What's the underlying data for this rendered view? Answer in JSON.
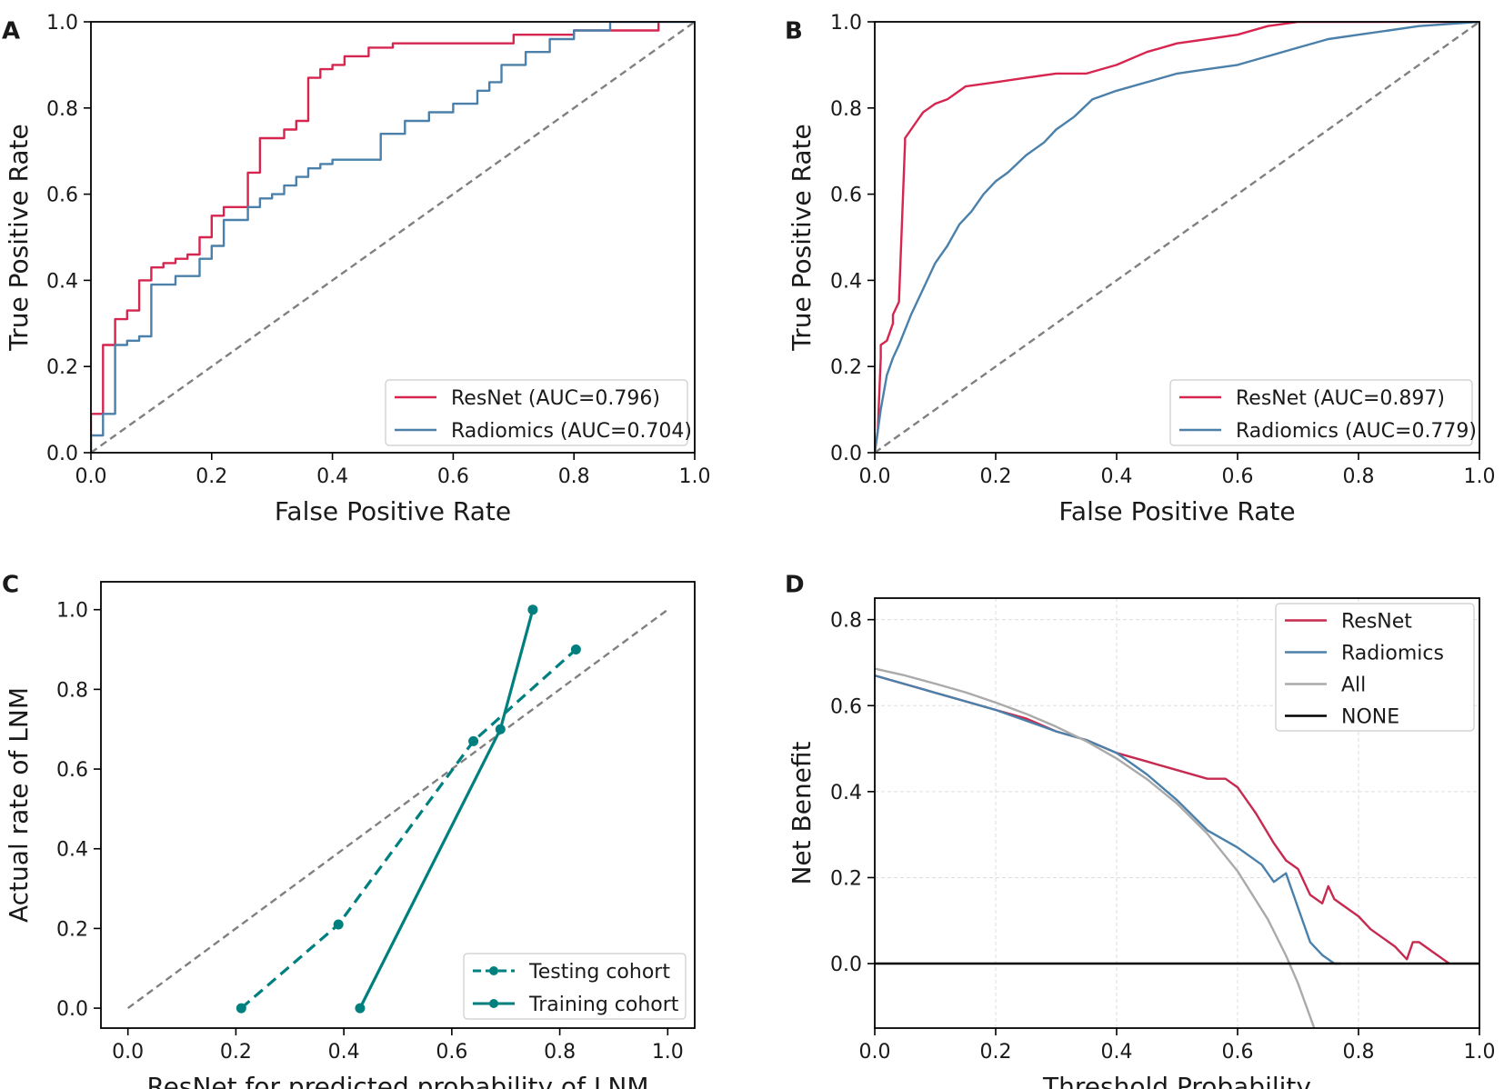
{
  "chart_data": [
    {
      "panel": "A",
      "type": "line",
      "xlabel": "False Positive Rate",
      "ylabel": "True Positive Rate",
      "xlim": [
        0,
        1
      ],
      "ylim": [
        0,
        1
      ],
      "xticks": [
        "0.0",
        "0.2",
        "0.4",
        "0.6",
        "0.8",
        "1.0"
      ],
      "yticks": [
        "0.0",
        "0.2",
        "0.4",
        "0.6",
        "0.8",
        "1.0"
      ],
      "xtick_values": [
        0,
        0.2,
        0.4,
        0.6,
        0.8,
        1.0
      ],
      "ytick_values": [
        0,
        0.2,
        0.4,
        0.6,
        0.8,
        1.0
      ],
      "legend_position": "lower-right",
      "reference_line": {
        "x": [
          0,
          1
        ],
        "y": [
          0,
          1
        ],
        "color": "#808080",
        "dash": true
      },
      "series": [
        {
          "name": "ResNet (AUC=0.796)",
          "color": "#d6254f",
          "step": true,
          "x": [
            0,
            0,
            0.02,
            0.02,
            0.04,
            0.04,
            0.06,
            0.06,
            0.08,
            0.08,
            0.1,
            0.1,
            0.12,
            0.12,
            0.14,
            0.14,
            0.16,
            0.16,
            0.18,
            0.18,
            0.2,
            0.2,
            0.22,
            0.22,
            0.26,
            0.26,
            0.28,
            0.28,
            0.32,
            0.32,
            0.34,
            0.34,
            0.36,
            0.36,
            0.38,
            0.38,
            0.4,
            0.4,
            0.42,
            0.42,
            0.46,
            0.46,
            0.5,
            0.5,
            0.7,
            0.7,
            0.8,
            0.8,
            0.94,
            0.94
          ],
          "y": [
            0,
            0.09,
            0.09,
            0.25,
            0.25,
            0.31,
            0.31,
            0.33,
            0.33,
            0.4,
            0.4,
            0.43,
            0.43,
            0.44,
            0.44,
            0.45,
            0.45,
            0.46,
            0.46,
            0.5,
            0.5,
            0.55,
            0.55,
            0.57,
            0.57,
            0.65,
            0.65,
            0.73,
            0.73,
            0.75,
            0.75,
            0.77,
            0.77,
            0.87,
            0.87,
            0.89,
            0.89,
            0.9,
            0.9,
            0.92,
            0.92,
            0.94,
            0.94,
            0.95,
            0.95,
            0.97,
            0.97,
            0.98,
            0.98,
            1.0
          ]
        },
        {
          "name": "Radiomics (AUC=0.704)",
          "color": "#4a80aa",
          "step": true,
          "x": [
            0,
            0,
            0.02,
            0.02,
            0.04,
            0.04,
            0.06,
            0.06,
            0.08,
            0.08,
            0.1,
            0.1,
            0.14,
            0.14,
            0.18,
            0.18,
            0.2,
            0.2,
            0.22,
            0.22,
            0.26,
            0.26,
            0.28,
            0.28,
            0.3,
            0.3,
            0.32,
            0.32,
            0.34,
            0.34,
            0.36,
            0.36,
            0.38,
            0.38,
            0.4,
            0.4,
            0.48,
            0.48,
            0.52,
            0.52,
            0.56,
            0.56,
            0.6,
            0.6,
            0.64,
            0.64,
            0.66,
            0.66,
            0.68,
            0.68,
            0.72,
            0.72,
            0.76,
            0.76,
            0.8,
            0.8,
            0.86,
            0.86,
            1.0
          ],
          "y": [
            0,
            0.04,
            0.04,
            0.09,
            0.09,
            0.25,
            0.25,
            0.26,
            0.26,
            0.27,
            0.27,
            0.39,
            0.39,
            0.41,
            0.41,
            0.45,
            0.45,
            0.48,
            0.48,
            0.54,
            0.54,
            0.57,
            0.57,
            0.59,
            0.59,
            0.6,
            0.6,
            0.62,
            0.62,
            0.64,
            0.64,
            0.66,
            0.66,
            0.67,
            0.67,
            0.68,
            0.68,
            0.74,
            0.74,
            0.77,
            0.77,
            0.79,
            0.79,
            0.81,
            0.81,
            0.84,
            0.84,
            0.86,
            0.86,
            0.9,
            0.9,
            0.93,
            0.93,
            0.96,
            0.96,
            0.98,
            0.98,
            1.0,
            1.0
          ]
        }
      ]
    },
    {
      "panel": "B",
      "type": "line",
      "xlabel": "False Positive Rate",
      "ylabel": "True Positive Rate",
      "xlim": [
        0,
        1
      ],
      "ylim": [
        0,
        1
      ],
      "xticks": [
        "0.0",
        "0.2",
        "0.4",
        "0.6",
        "0.8",
        "1.0"
      ],
      "yticks": [
        "0.0",
        "0.2",
        "0.4",
        "0.6",
        "0.8",
        "1.0"
      ],
      "xtick_values": [
        0,
        0.2,
        0.4,
        0.6,
        0.8,
        1.0
      ],
      "ytick_values": [
        0,
        0.2,
        0.4,
        0.6,
        0.8,
        1.0
      ],
      "legend_position": "lower-right",
      "reference_line": {
        "x": [
          0,
          1
        ],
        "y": [
          0,
          1
        ],
        "color": "#808080",
        "dash": true
      },
      "series": [
        {
          "name": "ResNet (AUC=0.897)",
          "color": "#d6254f",
          "x": [
            0,
            0.005,
            0.01,
            0.01,
            0.02,
            0.03,
            0.03,
            0.04,
            0.05,
            0.05,
            0.06,
            0.07,
            0.08,
            0.09,
            0.1,
            0.12,
            0.15,
            0.2,
            0.25,
            0.3,
            0.35,
            0.4,
            0.45,
            0.5,
            0.55,
            0.6,
            0.65,
            0.7,
            0.8,
            0.9,
            1.0
          ],
          "y": [
            0,
            0.05,
            0.22,
            0.25,
            0.26,
            0.3,
            0.32,
            0.35,
            0.72,
            0.73,
            0.75,
            0.77,
            0.79,
            0.8,
            0.81,
            0.82,
            0.85,
            0.86,
            0.87,
            0.88,
            0.88,
            0.9,
            0.93,
            0.95,
            0.96,
            0.97,
            0.99,
            1.0,
            1.0,
            1.0,
            1.0
          ]
        },
        {
          "name": "Radiomics (AUC=0.779)",
          "color": "#4a80aa",
          "x": [
            0,
            0.01,
            0.02,
            0.03,
            0.04,
            0.06,
            0.08,
            0.1,
            0.12,
            0.14,
            0.16,
            0.18,
            0.2,
            0.22,
            0.25,
            0.28,
            0.3,
            0.33,
            0.36,
            0.4,
            0.45,
            0.5,
            0.55,
            0.6,
            0.65,
            0.7,
            0.75,
            0.8,
            0.85,
            0.9,
            1.0
          ],
          "y": [
            0,
            0.1,
            0.18,
            0.22,
            0.25,
            0.32,
            0.38,
            0.44,
            0.48,
            0.53,
            0.56,
            0.6,
            0.63,
            0.65,
            0.69,
            0.72,
            0.75,
            0.78,
            0.82,
            0.84,
            0.86,
            0.88,
            0.89,
            0.9,
            0.92,
            0.94,
            0.96,
            0.97,
            0.98,
            0.99,
            1.0
          ]
        }
      ]
    },
    {
      "panel": "C",
      "type": "line",
      "xlabel": "ResNet for predicted probability of LNM",
      "ylabel": "Actual rate of LNM",
      "xlim": [
        -0.05,
        1.05
      ],
      "ylim": [
        -0.05,
        1.07
      ],
      "xticks": [
        "0.0",
        "0.2",
        "0.4",
        "0.6",
        "0.8",
        "1.0"
      ],
      "yticks": [
        "0.0",
        "0.2",
        "0.4",
        "0.6",
        "0.8",
        "1.0"
      ],
      "xtick_values": [
        0,
        0.2,
        0.4,
        0.6,
        0.8,
        1.0
      ],
      "ytick_values": [
        0,
        0.2,
        0.4,
        0.6,
        0.8,
        1.0
      ],
      "legend_position": "lower-right",
      "reference_line": {
        "x": [
          0,
          1
        ],
        "y": [
          0,
          1
        ],
        "color": "#808080",
        "dash": true
      },
      "series": [
        {
          "name": "Testing cohort",
          "color": "#007f7f",
          "dash": true,
          "markers": true,
          "x": [
            0.21,
            0.39,
            0.64,
            0.83
          ],
          "y": [
            0.0,
            0.21,
            0.67,
            0.9
          ]
        },
        {
          "name": "Training cohort",
          "color": "#007f7f",
          "dash": false,
          "markers": true,
          "x": [
            0.43,
            0.69,
            0.75
          ],
          "y": [
            0.0,
            0.7,
            1.0
          ]
        }
      ]
    },
    {
      "panel": "D",
      "type": "line",
      "xlabel": "Threshold Probability",
      "ylabel": "Net Benefit",
      "xlim": [
        0,
        1
      ],
      "ylim": [
        -0.15,
        0.85
      ],
      "xticks": [
        "0.0",
        "0.2",
        "0.4",
        "0.6",
        "0.8",
        "1.0"
      ],
      "yticks": [
        "0.0",
        "0.2",
        "0.4",
        "0.6",
        "0.8"
      ],
      "xtick_values": [
        0,
        0.2,
        0.4,
        0.6,
        0.8,
        1.0
      ],
      "ytick_values": [
        0,
        0.2,
        0.4,
        0.6,
        0.8
      ],
      "grid": true,
      "legend_position": "top-right",
      "series": [
        {
          "name": "ResNet",
          "color": "#c62a4f",
          "x": [
            0,
            0.05,
            0.1,
            0.15,
            0.2,
            0.25,
            0.3,
            0.35,
            0.4,
            0.45,
            0.5,
            0.55,
            0.58,
            0.6,
            0.63,
            0.66,
            0.68,
            0.7,
            0.72,
            0.74,
            0.75,
            0.76,
            0.78,
            0.8,
            0.82,
            0.84,
            0.86,
            0.88,
            0.89,
            0.9,
            0.92,
            0.93,
            0.94,
            0.95
          ],
          "y": [
            0.67,
            0.65,
            0.63,
            0.61,
            0.59,
            0.57,
            0.54,
            0.52,
            0.49,
            0.47,
            0.45,
            0.43,
            0.43,
            0.41,
            0.35,
            0.28,
            0.24,
            0.22,
            0.16,
            0.14,
            0.18,
            0.15,
            0.13,
            0.11,
            0.08,
            0.06,
            0.04,
            0.01,
            0.05,
            0.05,
            0.03,
            0.02,
            0.01,
            0.0
          ]
        },
        {
          "name": "Radiomics",
          "color": "#4a80aa",
          "x": [
            0,
            0.1,
            0.2,
            0.3,
            0.35,
            0.4,
            0.45,
            0.5,
            0.55,
            0.6,
            0.62,
            0.64,
            0.66,
            0.68,
            0.7,
            0.72,
            0.74,
            0.76,
            0.77
          ],
          "y": [
            0.67,
            0.63,
            0.59,
            0.54,
            0.52,
            0.49,
            0.44,
            0.38,
            0.31,
            0.27,
            0.25,
            0.23,
            0.19,
            0.21,
            0.13,
            0.05,
            0.02,
            0.0,
            0.0
          ]
        },
        {
          "name": "All",
          "color": "#aaaaaa",
          "x": [
            0,
            0.05,
            0.1,
            0.15,
            0.2,
            0.25,
            0.3,
            0.35,
            0.4,
            0.45,
            0.5,
            0.55,
            0.6,
            0.65,
            0.68,
            0.7,
            0.73
          ],
          "y": [
            0.686,
            0.67,
            0.651,
            0.631,
            0.607,
            0.581,
            0.551,
            0.517,
            0.477,
            0.429,
            0.372,
            0.302,
            0.215,
            0.103,
            0.019,
            -0.046,
            -0.163
          ]
        },
        {
          "name": "NONE",
          "color": "#000000",
          "x": [
            0,
            1
          ],
          "y": [
            0,
            0
          ]
        }
      ]
    }
  ]
}
